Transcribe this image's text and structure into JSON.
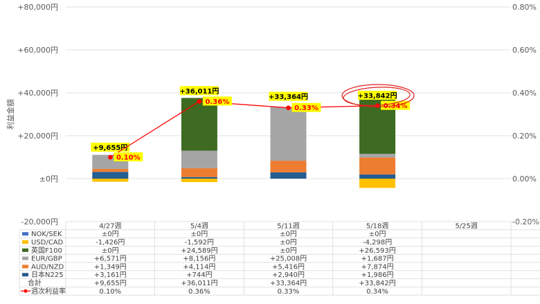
{
  "chart_data": {
    "type": "bar",
    "stacked": true,
    "categories": [
      "4/27週",
      "5/4週",
      "5/11週",
      "5/18週",
      "5/25週"
    ],
    "ylabel": "利益金額",
    "ylim": [
      -20000,
      80000
    ],
    "y_ticks": [
      "-20,000円",
      "±0円",
      "+20,000円",
      "+40,000円",
      "+60,000円",
      "+80,000円"
    ],
    "y2lim": [
      -0.2,
      0.8
    ],
    "y2_ticks": [
      "-0.20%",
      "0.00%",
      "0.20%",
      "0.40%",
      "0.60%",
      "0.80%"
    ],
    "series": [
      {
        "name": "NOK/SEK",
        "color": "#4472c4",
        "values": [
          0,
          0,
          0,
          0,
          null
        ],
        "labels": [
          "±0円",
          "±0円",
          "±0円",
          "±0円",
          ""
        ]
      },
      {
        "name": "USD/CAD",
        "color": "#ffc000",
        "values": [
          -1426,
          -1592,
          0,
          -4298,
          null
        ],
        "labels": [
          "-1,426円",
          "-1,592円",
          "±0円",
          "-4,298円",
          ""
        ]
      },
      {
        "name": "英国F100",
        "color": "#3e6b22",
        "values": [
          0,
          24589,
          0,
          26593,
          null
        ],
        "labels": [
          "±0円",
          "+24,589円",
          "±0円",
          "+26,593円",
          ""
        ]
      },
      {
        "name": "EUR/GBP",
        "color": "#a5a5a5",
        "values": [
          6571,
          8156,
          25008,
          1687,
          null
        ],
        "labels": [
          "+6,571円",
          "+8,156円",
          "+25,008円",
          "+1,687円",
          ""
        ]
      },
      {
        "name": "AUD/NZD",
        "color": "#ed7d31",
        "values": [
          1349,
          4114,
          5416,
          7874,
          null
        ],
        "labels": [
          "+1,349円",
          "+4,114円",
          "+5,416円",
          "+7,874円",
          ""
        ]
      },
      {
        "name": "日本N225",
        "color": "#255e91",
        "values": [
          3161,
          744,
          2940,
          1986,
          null
        ],
        "labels": [
          "+3,161円",
          "+744円",
          "+2,940円",
          "+1,986円",
          ""
        ]
      }
    ],
    "total": {
      "name": "合計",
      "values": [
        9655,
        36011,
        33364,
        33842,
        null
      ],
      "labels": [
        "+9,655円",
        "+36,011円",
        "+33,364円",
        "+33,842円",
        ""
      ]
    },
    "rate": {
      "name": "週次利益率",
      "color": "#ff0000",
      "values": [
        0.1,
        0.36,
        0.33,
        0.34,
        null
      ],
      "labels": [
        "0.10%",
        "0.36%",
        "0.33%",
        "0.34%",
        ""
      ]
    },
    "highlight_color": "#ffff00",
    "circle_color": "#e02020"
  }
}
